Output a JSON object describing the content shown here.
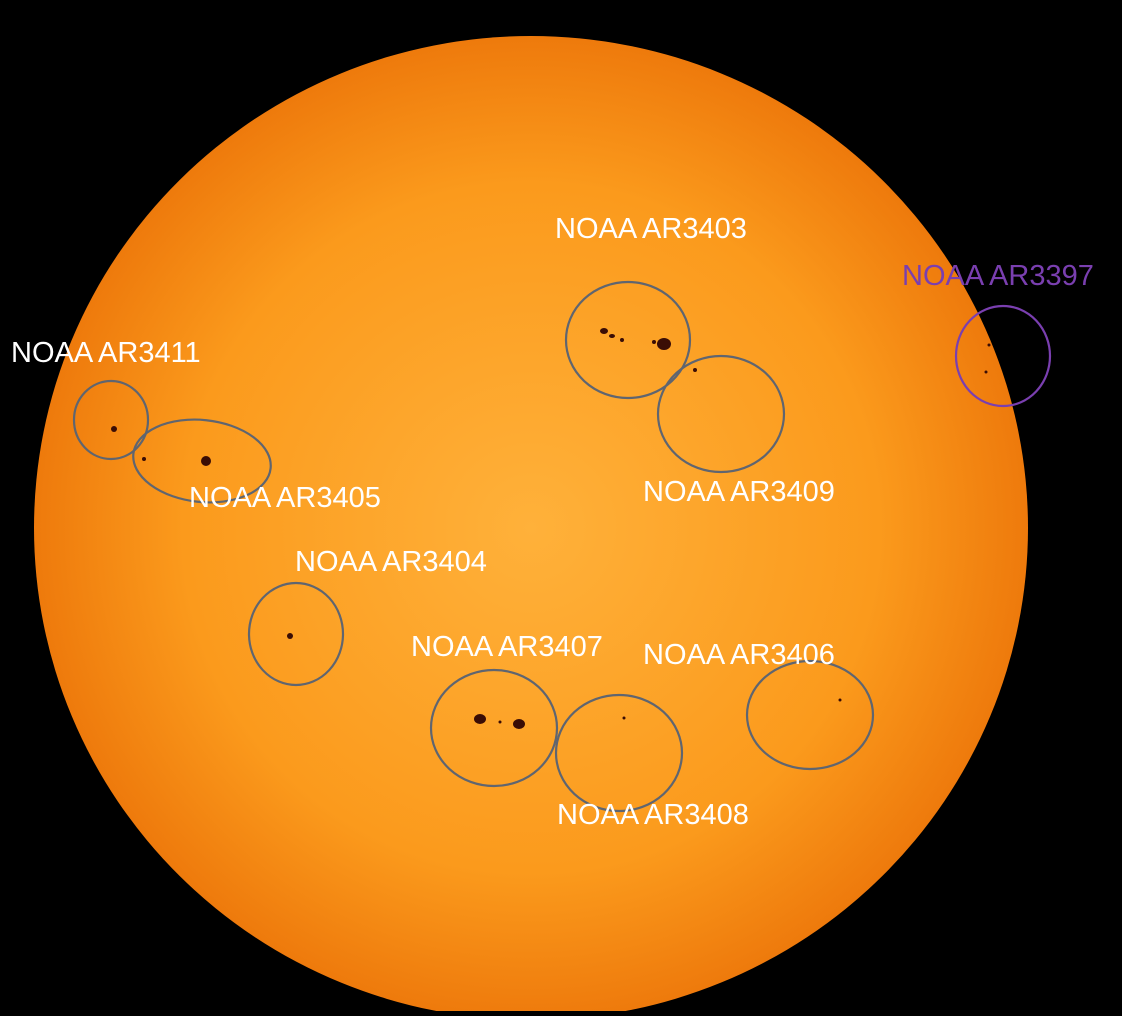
{
  "colors": {
    "background": "#000000",
    "sun_core": "#ffb13a",
    "sun_mid": "#fb9a1c",
    "sun_limb": "#ee7a0c",
    "sunspot": "#3a0d05",
    "circle_default": "#5f6570",
    "circle_highlight": "#7a3fb0",
    "label_default": "#ffffff",
    "label_highlight": "#7a3fb0"
  },
  "regions": [
    {
      "id": "ar3403",
      "label": "NOAA AR3403",
      "highlight": false
    },
    {
      "id": "ar3397",
      "label": "NOAA AR3397",
      "highlight": true
    },
    {
      "id": "ar3411",
      "label": "NOAA AR3411",
      "highlight": false
    },
    {
      "id": "ar3405",
      "label": "NOAA AR3405",
      "highlight": false
    },
    {
      "id": "ar3409",
      "label": "NOAA AR3409",
      "highlight": false
    },
    {
      "id": "ar3404",
      "label": "NOAA AR3404",
      "highlight": false
    },
    {
      "id": "ar3407",
      "label": "NOAA AR3407",
      "highlight": false
    },
    {
      "id": "ar3406",
      "label": "NOAA AR3406",
      "highlight": false
    },
    {
      "id": "ar3408",
      "label": "NOAA AR3408",
      "highlight": false
    }
  ]
}
